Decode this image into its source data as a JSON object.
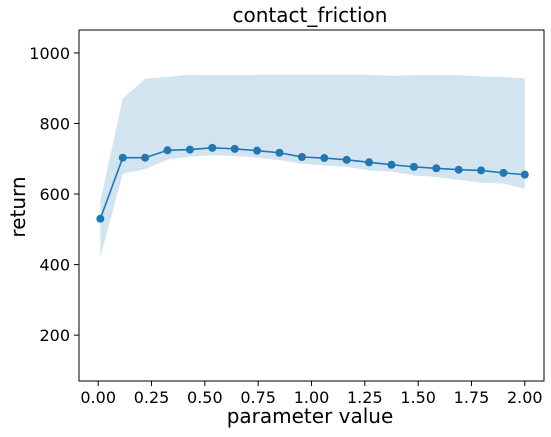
{
  "chart_data": {
    "type": "line",
    "title": "contact_friction",
    "xlabel": "parameter value",
    "ylabel": "return",
    "xlim": [
      -0.09,
      2.09
    ],
    "ylim": [
      70,
      1065
    ],
    "xticks": [
      0.0,
      0.25,
      0.5,
      0.75,
      1.0,
      1.25,
      1.5,
      1.75,
      2.0
    ],
    "xtick_labels": [
      "0.00",
      "0.25",
      "0.50",
      "0.75",
      "1.00",
      "1.25",
      "1.50",
      "1.75",
      "2.00"
    ],
    "yticks": [
      200,
      400,
      600,
      800,
      1000
    ],
    "ytick_labels": [
      "200",
      "400",
      "600",
      "800",
      "1000"
    ],
    "grid": false,
    "colors": {
      "line": "#1f77b4",
      "band": "#1f77b4",
      "band_opacity": 0.2
    },
    "series": [
      {
        "x": [
          0.01,
          0.115,
          0.22,
          0.325,
          0.43,
          0.535,
          0.64,
          0.745,
          0.85,
          0.955,
          1.06,
          1.165,
          1.27,
          1.375,
          1.48,
          1.585,
          1.69,
          1.795,
          1.9,
          2.0
        ],
        "y": [
          530,
          703,
          703,
          724,
          726,
          731,
          728,
          723,
          717,
          705,
          702,
          697,
          690,
          683,
          677,
          673,
          669,
          667,
          660,
          655
        ],
        "y_lower": [
          420,
          658,
          670,
          698,
          706,
          710,
          708,
          703,
          696,
          686,
          681,
          677,
          667,
          664,
          653,
          648,
          640,
          632,
          630,
          615
        ],
        "y_upper": [
          580,
          870,
          927,
          932,
          938,
          937,
          937,
          938,
          938,
          938,
          938,
          938,
          938,
          935,
          937,
          937,
          937,
          933,
          932,
          928
        ]
      }
    ]
  }
}
